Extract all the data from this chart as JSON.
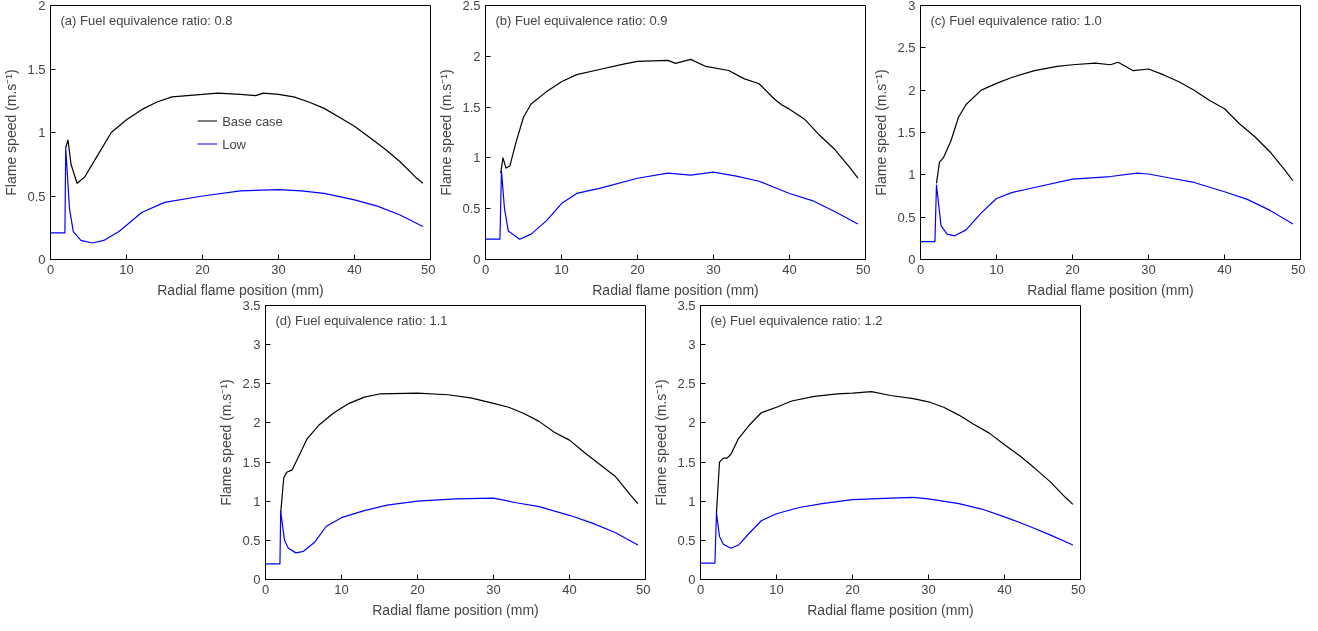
{
  "chart_data": [
    {
      "type": "line",
      "title": "(a) Fuel equivalence ratio: 0.8",
      "xlabel": "Radial flame position (mm)",
      "ylabel": "Flame speed (m.s⁻¹)",
      "xlim": [
        0,
        50
      ],
      "ylim": [
        0,
        2
      ],
      "xticks": [
        0,
        10,
        20,
        30,
        40,
        50
      ],
      "yticks": [
        0,
        0.5,
        1,
        1.5,
        2
      ],
      "grid": false,
      "legend": "center",
      "series": [
        {
          "name": "Base case",
          "color": "#000000",
          "x": [
            2.0,
            2.3,
            2.7,
            3.5,
            4.5,
            6,
            8,
            10,
            12,
            14,
            16,
            20,
            22,
            25,
            27,
            28,
            30,
            32,
            34,
            36,
            38,
            40,
            42,
            44,
            46,
            48,
            49
          ],
          "values": [
            0.88,
            0.94,
            0.75,
            0.6,
            0.65,
            0.8,
            1.0,
            1.1,
            1.18,
            1.24,
            1.28,
            1.3,
            1.31,
            1.3,
            1.29,
            1.31,
            1.3,
            1.28,
            1.24,
            1.19,
            1.12,
            1.05,
            0.96,
            0.87,
            0.77,
            0.65,
            0.6
          ]
        },
        {
          "name": "Low",
          "color": "#0000ff",
          "x": [
            0,
            1.9,
            2.0,
            2.5,
            3,
            4,
            5.5,
            7,
            9,
            10,
            12,
            15,
            20,
            25,
            30,
            33,
            36,
            40,
            43,
            46,
            49
          ],
          "values": [
            0.21,
            0.21,
            0.88,
            0.4,
            0.22,
            0.15,
            0.13,
            0.15,
            0.22,
            0.27,
            0.37,
            0.45,
            0.5,
            0.54,
            0.55,
            0.54,
            0.52,
            0.47,
            0.42,
            0.35,
            0.26
          ]
        }
      ]
    },
    {
      "type": "line",
      "title": "(b) Fuel equivalence ratio: 0.9",
      "xlabel": "Radial flame position (mm)",
      "ylabel": "Flame speed (m.s⁻¹)",
      "xlim": [
        0,
        50
      ],
      "ylim": [
        0,
        2.5
      ],
      "xticks": [
        0,
        10,
        20,
        30,
        40,
        50
      ],
      "yticks": [
        0,
        0.5,
        1,
        1.5,
        2,
        2.5
      ],
      "grid": false,
      "series": [
        {
          "color": "#000000",
          "x": [
            2.0,
            2.3,
            2.7,
            3.2,
            4,
            5,
            6,
            8,
            10,
            12,
            15,
            18,
            20,
            24,
            25,
            27,
            29,
            32,
            34,
            36,
            38,
            39,
            40,
            42,
            44,
            46,
            48,
            49
          ],
          "values": [
            0.85,
            1.0,
            0.9,
            0.92,
            1.15,
            1.4,
            1.53,
            1.65,
            1.75,
            1.82,
            1.87,
            1.92,
            1.95,
            1.96,
            1.93,
            1.97,
            1.9,
            1.86,
            1.78,
            1.73,
            1.58,
            1.52,
            1.48,
            1.38,
            1.22,
            1.08,
            0.9,
            0.8
          ]
        },
        {
          "color": "#0000ff",
          "x": [
            0,
            1.9,
            2.1,
            2.5,
            3,
            4.5,
            6,
            8,
            10,
            12,
            15,
            20,
            24,
            27,
            30,
            33,
            36,
            40,
            43,
            46,
            49
          ],
          "values": [
            0.2,
            0.2,
            0.87,
            0.5,
            0.28,
            0.2,
            0.25,
            0.38,
            0.55,
            0.65,
            0.7,
            0.8,
            0.85,
            0.83,
            0.86,
            0.82,
            0.77,
            0.65,
            0.58,
            0.47,
            0.35
          ]
        }
      ]
    },
    {
      "type": "line",
      "title": "(c) Fuel equivalence ratio: 1.0",
      "xlabel": "Radial flame position (mm)",
      "ylabel": "Flame speed (m.s⁻¹)",
      "xlim": [
        0,
        50
      ],
      "ylim": [
        0,
        3
      ],
      "xticks": [
        0,
        10,
        20,
        30,
        40,
        50
      ],
      "yticks": [
        0,
        0.5,
        1,
        1.5,
        2,
        2.5,
        3
      ],
      "grid": false,
      "series": [
        {
          "color": "#000000",
          "x": [
            2.1,
            2.5,
            3,
            4,
            5,
            6,
            8,
            10,
            12,
            15,
            18,
            20,
            23,
            25,
            26,
            28,
            30,
            32,
            34,
            36,
            38,
            40,
            42,
            44,
            46,
            48,
            49
          ],
          "values": [
            0.9,
            1.15,
            1.2,
            1.4,
            1.68,
            1.83,
            2.0,
            2.08,
            2.15,
            2.23,
            2.28,
            2.3,
            2.32,
            2.3,
            2.33,
            2.23,
            2.25,
            2.18,
            2.1,
            2.0,
            1.88,
            1.78,
            1.6,
            1.45,
            1.27,
            1.05,
            0.93
          ]
        },
        {
          "color": "#0000ff",
          "x": [
            0,
            1.9,
            2.1,
            2.7,
            3.5,
            4.5,
            6,
            8,
            10,
            12,
            15,
            20,
            25,
            28.5,
            30,
            33,
            36,
            40,
            43,
            46,
            49
          ],
          "values": [
            0.21,
            0.21,
            0.88,
            0.4,
            0.3,
            0.28,
            0.35,
            0.55,
            0.72,
            0.79,
            0.85,
            0.95,
            0.98,
            1.02,
            1.01,
            0.96,
            0.91,
            0.8,
            0.71,
            0.58,
            0.42
          ]
        }
      ]
    },
    {
      "type": "line",
      "title": "(d) Fuel equivalence ratio: 1.1",
      "xlabel": "Radial flame position (mm)",
      "ylabel": "Flame speed (m.s⁻¹)",
      "xlim": [
        0,
        50
      ],
      "ylim": [
        0,
        3.5
      ],
      "xticks": [
        0,
        10,
        20,
        30,
        40,
        50
      ],
      "yticks": [
        0,
        0.5,
        1,
        1.5,
        2,
        2.5,
        3,
        3.5
      ],
      "grid": false,
      "series": [
        {
          "color": "#000000",
          "x": [
            2.0,
            2.4,
            2.8,
            3.5,
            4.5,
            5.5,
            7,
            9,
            11,
            13,
            15,
            20,
            24,
            27,
            30,
            32,
            34,
            36,
            38,
            40,
            42,
            44,
            46,
            48,
            49
          ],
          "values": [
            0.85,
            1.3,
            1.37,
            1.4,
            1.6,
            1.8,
            1.97,
            2.13,
            2.25,
            2.33,
            2.37,
            2.38,
            2.36,
            2.32,
            2.25,
            2.2,
            2.12,
            2.02,
            1.88,
            1.78,
            1.62,
            1.47,
            1.32,
            1.08,
            0.97
          ]
        },
        {
          "color": "#0000ff",
          "x": [
            0,
            1.9,
            2.0,
            2.5,
            3,
            4,
            5,
            6.5,
            8,
            10,
            13,
            16,
            20,
            25,
            30,
            33,
            36,
            40,
            43,
            46,
            49
          ],
          "values": [
            0.2,
            0.2,
            0.87,
            0.5,
            0.4,
            0.34,
            0.36,
            0.48,
            0.68,
            0.79,
            0.88,
            0.95,
            1.0,
            1.03,
            1.04,
            0.98,
            0.93,
            0.82,
            0.72,
            0.6,
            0.44
          ]
        }
      ]
    },
    {
      "type": "line",
      "title": "(e) Fuel equivalence ratio: 1.2",
      "xlabel": "Radial flame position (mm)",
      "ylabel": "Flame speed (m.s⁻¹)",
      "xlim": [
        0,
        50
      ],
      "ylim": [
        0,
        3.5
      ],
      "xticks": [
        0,
        10,
        20,
        30,
        40,
        50
      ],
      "yticks": [
        0,
        0.5,
        1,
        1.5,
        2,
        2.5,
        3,
        3.5
      ],
      "grid": false,
      "series": [
        {
          "color": "#000000",
          "x": [
            2.1,
            2.5,
            3,
            3.5,
            4,
            5,
            6.5,
            8,
            10,
            12,
            15,
            18,
            20,
            22.5,
            25,
            28,
            30,
            32,
            34,
            36,
            38,
            40,
            42,
            44,
            46,
            48,
            49
          ],
          "values": [
            0.85,
            1.5,
            1.55,
            1.55,
            1.6,
            1.8,
            1.98,
            2.13,
            2.2,
            2.28,
            2.34,
            2.37,
            2.38,
            2.4,
            2.35,
            2.31,
            2.27,
            2.2,
            2.1,
            1.98,
            1.87,
            1.72,
            1.58,
            1.42,
            1.25,
            1.05,
            0.96
          ]
        },
        {
          "color": "#0000ff",
          "x": [
            0,
            1.9,
            2.1,
            2.5,
            3,
            4,
            5,
            6.5,
            8,
            10,
            13,
            16,
            20,
            25,
            28,
            30,
            34,
            37,
            40,
            43,
            46,
            49
          ],
          "values": [
            0.21,
            0.21,
            0.85,
            0.55,
            0.45,
            0.4,
            0.44,
            0.6,
            0.75,
            0.84,
            0.92,
            0.97,
            1.02,
            1.04,
            1.05,
            1.03,
            0.97,
            0.9,
            0.8,
            0.69,
            0.57,
            0.44
          ]
        }
      ]
    }
  ]
}
